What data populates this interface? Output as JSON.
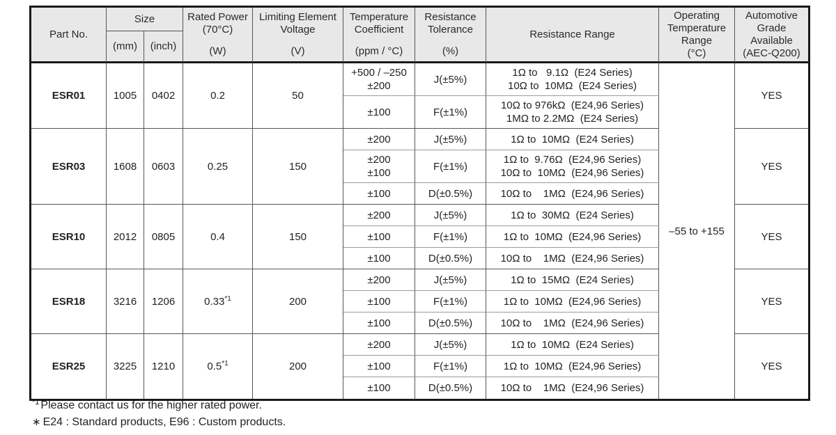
{
  "colors": {
    "header_bg": "#e8e8e8",
    "border_dark": "#555555",
    "border_light": "#9a9a9a",
    "outer_border": "#1a1a1a",
    "text": "#222222"
  },
  "table": {
    "header": {
      "part_no": "Part No.",
      "size": "Size",
      "size_mm": "(mm)",
      "size_inch": "(inch)",
      "rated_power_title": "Rated Power\n(70°C)",
      "rated_power_unit": "(W)",
      "voltage_title": "Limiting Element\nVoltage",
      "voltage_unit": "(V)",
      "tempco_title": "Temperature\nCoefficient",
      "tempco_unit": "(ppm / °C)",
      "tolerance_title": "Resistance\nTolerance",
      "tolerance_unit": "(%)",
      "range": "Resistance Range",
      "operating_temp": "Operating\nTemperature\nRange\n(°C)",
      "automotive": "Automotive\nGrade\nAvailable\n(AEC-Q200)"
    },
    "operating_temp": "–55 to +155",
    "parts": [
      {
        "name": "ESR01",
        "mm": "1005",
        "inch": "0402",
        "power": "0.2",
        "power_sup": "",
        "voltage": "50",
        "auto": "YES",
        "specs": [
          {
            "tempco": "+500 / –250\n±200",
            "tol": "J(±5%)",
            "range": "1Ω to   9.1Ω  (E24 Series)\n10Ω to  10MΩ  (E24 Series)"
          },
          {
            "tempco": "±100",
            "tol": "F(±1%)",
            "range": "10Ω to 976kΩ  (E24,96 Series)\n1MΩ to 2.2MΩ  (E24 Series)"
          }
        ]
      },
      {
        "name": "ESR03",
        "mm": "1608",
        "inch": "0603",
        "power": "0.25",
        "power_sup": "",
        "voltage": "150",
        "auto": "YES",
        "specs": [
          {
            "tempco": "±200",
            "tol": "J(±5%)",
            "range": "1Ω to  10MΩ  (E24 Series)"
          },
          {
            "tempco": "±200\n±100",
            "tol": "F(±1%)",
            "range": "1Ω to  9.76Ω  (E24,96 Series)\n10Ω to  10MΩ  (E24,96 Series)"
          },
          {
            "tempco": "±100",
            "tol": "D(±0.5%)",
            "range": "10Ω to    1MΩ  (E24,96 Series)"
          }
        ]
      },
      {
        "name": "ESR10",
        "mm": "2012",
        "inch": "0805",
        "power": "0.4",
        "power_sup": "",
        "voltage": "150",
        "auto": "YES",
        "specs": [
          {
            "tempco": "±200",
            "tol": "J(±5%)",
            "range": "1Ω to  30MΩ  (E24 Series)"
          },
          {
            "tempco": "±100",
            "tol": "F(±1%)",
            "range": "1Ω to  10MΩ  (E24,96 Series)"
          },
          {
            "tempco": "±100",
            "tol": "D(±0.5%)",
            "range": "10Ω to    1MΩ  (E24,96 Series)"
          }
        ]
      },
      {
        "name": "ESR18",
        "mm": "3216",
        "inch": "1206",
        "power": "0.33",
        "power_sup": "*1",
        "voltage": "200",
        "auto": "YES",
        "specs": [
          {
            "tempco": "±200",
            "tol": "J(±5%)",
            "range": "1Ω to  15MΩ  (E24 Series)"
          },
          {
            "tempco": "±100",
            "tol": "F(±1%)",
            "range": "1Ω to  10MΩ  (E24,96 Series)"
          },
          {
            "tempco": "±100",
            "tol": "D(±0.5%)",
            "range": "10Ω to    1MΩ  (E24,96 Series)"
          }
        ]
      },
      {
        "name": "ESR25",
        "mm": "3225",
        "inch": "1210",
        "power": "0.5",
        "power_sup": "*1",
        "voltage": "200",
        "auto": "YES",
        "specs": [
          {
            "tempco": "±200",
            "tol": "J(±5%)",
            "range": "1Ω to  10MΩ  (E24 Series)"
          },
          {
            "tempco": "±100",
            "tol": "F(±1%)",
            "range": "1Ω to  10MΩ  (E24,96 Series)"
          },
          {
            "tempco": "±100",
            "tol": "D(±0.5%)",
            "range": "10Ω to    1MΩ  (E24,96 Series)"
          }
        ]
      }
    ]
  },
  "footnotes": [
    {
      "marker": "*1",
      "text": "Please contact us for the higher rated power."
    },
    {
      "marker": "∗",
      "text": "E24 : Standard products, E96 : Custom products."
    }
  ]
}
